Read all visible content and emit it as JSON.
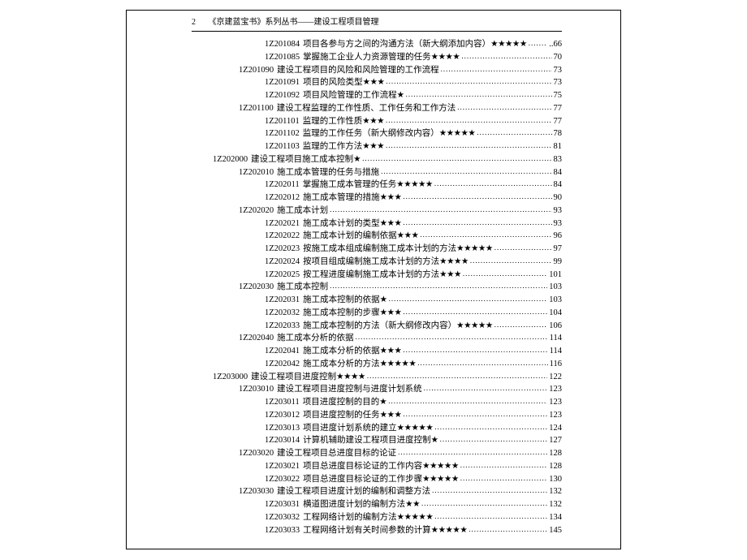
{
  "header": {
    "page_number": "2",
    "book_title": "《京建蓝宝书》系列丛书——建设工程项目管理"
  },
  "toc": [
    {
      "indent": 3,
      "code": "1Z201084",
      "title": "项目各参与方之间的沟通方法（新大纲添加内容）",
      "stars": "★★★★★",
      "page": "..66"
    },
    {
      "indent": 3,
      "code": "1Z201085",
      "title": "掌握施工企业人力资源管理的任务",
      "stars": "★★★★",
      "page": "70"
    },
    {
      "indent": 2,
      "code": "1Z201090",
      "title": "建设工程项目的风险和风险管理的工作流程",
      "stars": "",
      "page": "73"
    },
    {
      "indent": 3,
      "code": "1Z201091",
      "title": "项目的风险类型",
      "stars": "★★★",
      "page": "73"
    },
    {
      "indent": 3,
      "code": "1Z201092",
      "title": "项目风险管理的工作流程",
      "stars": "★",
      "page": "75"
    },
    {
      "indent": 2,
      "code": "1Z201100",
      "title": "建设工程监理的工作性质、工作任务和工作方法",
      "stars": "",
      "page": "77"
    },
    {
      "indent": 3,
      "code": "1Z201101",
      "title": "监理的工作性质",
      "stars": "★★★",
      "page": "77"
    },
    {
      "indent": 3,
      "code": "1Z201102",
      "title": "监理的工作任务（新大纲修改内容）",
      "stars": "★★★★★",
      "page": "78"
    },
    {
      "indent": 3,
      "code": "1Z201103",
      "title": "监理的工作方法",
      "stars": "★★★",
      "page": "81"
    },
    {
      "indent": 1,
      "code": "1Z202000",
      "title": "建设工程项目施工成本控制",
      "stars": "★",
      "page": "83"
    },
    {
      "indent": 2,
      "code": "1Z202010",
      "title": "施工成本管理的任务与措施",
      "stars": "",
      "page": "84"
    },
    {
      "indent": 3,
      "code": "1Z202011",
      "title": "掌握施工成本管理的任务",
      "stars": "★★★★★",
      "page": "84"
    },
    {
      "indent": 3,
      "code": "1Z202012",
      "title": "施工成本管理的措施",
      "stars": "★★★",
      "page": "90"
    },
    {
      "indent": 2,
      "code": "1Z202020",
      "title": "施工成本计划",
      "stars": "",
      "page": "93"
    },
    {
      "indent": 3,
      "code": "1Z202021",
      "title": "施工成本计划的类型",
      "stars": "★★★",
      "page": "93"
    },
    {
      "indent": 3,
      "code": "1Z202022",
      "title": "施工成本计划的编制依据",
      "stars": "★★★",
      "page": "96"
    },
    {
      "indent": 3,
      "code": "1Z202023",
      "title": "按施工成本组成编制施工成本计划的方法",
      "stars": "★★★★★",
      "page": "97"
    },
    {
      "indent": 3,
      "code": "1Z202024",
      "title": "按项目组成编制施工成本计划的方法",
      "stars": "★★★★",
      "page": "99"
    },
    {
      "indent": 3,
      "code": "1Z202025",
      "title": "按工程进度编制施工成本计划的方法",
      "stars": "★★★",
      "page": "101"
    },
    {
      "indent": 2,
      "code": "1Z202030",
      "title": "施工成本控制",
      "stars": "",
      "page": "103"
    },
    {
      "indent": 3,
      "code": "1Z202031",
      "title": "施工成本控制的依据",
      "stars": "★",
      "page": "103"
    },
    {
      "indent": 3,
      "code": "1Z202032",
      "title": "施工成本控制的步骤",
      "stars": "★★★",
      "page": "104"
    },
    {
      "indent": 3,
      "code": "1Z202033",
      "title": "施工成本控制的方法（新大纲修改内容）",
      "stars": "★★★★★",
      "page": "106"
    },
    {
      "indent": 2,
      "code": "1Z202040",
      "title": "施工成本分析的依据",
      "stars": "",
      "page": "114"
    },
    {
      "indent": 3,
      "code": "1Z202041",
      "title": "施工成本分析的依据",
      "stars": "★★★",
      "page": "114"
    },
    {
      "indent": 3,
      "code": "1Z202042",
      "title": "施工成本分析的方法",
      "stars": "★★★★★",
      "page": "116"
    },
    {
      "indent": 1,
      "code": "1Z203000",
      "title": "建设工程项目进度控制",
      "stars": "★★★★",
      "page": "122"
    },
    {
      "indent": 2,
      "code": "1Z203010",
      "title": "建设工程项目进度控制与进度计划系统",
      "stars": "",
      "page": "123"
    },
    {
      "indent": 3,
      "code": "1Z203011",
      "title": "项目进度控制的目的",
      "stars": "★",
      "page": "123"
    },
    {
      "indent": 3,
      "code": "1Z203012",
      "title": "项目进度控制的任务",
      "stars": "★★★",
      "page": "123"
    },
    {
      "indent": 3,
      "code": "1Z203013",
      "title": "项目进度计划系统的建立",
      "stars": "★★★★★",
      "page": "124"
    },
    {
      "indent": 3,
      "code": "1Z203014",
      "title": "计算机辅助建设工程项目进度控制",
      "stars": "★",
      "page": "127"
    },
    {
      "indent": 2,
      "code": "1Z203020",
      "title": "建设工程项目总进度目标的论证",
      "stars": "",
      "page": "128"
    },
    {
      "indent": 3,
      "code": "1Z203021",
      "title": "项目总进度目标论证的工作内容",
      "stars": "★★★★★",
      "page": "128"
    },
    {
      "indent": 3,
      "code": "1Z203022",
      "title": "项目总进度目标论证的工作步骤",
      "stars": "★★★★★",
      "page": "130"
    },
    {
      "indent": 2,
      "code": "1Z203030",
      "title": "建设工程项目进度计划的编制和调整方法",
      "stars": "",
      "page": "132"
    },
    {
      "indent": 3,
      "code": "1Z203031",
      "title": "横道图进度计划的编制方法",
      "stars": "★★",
      "page": "132"
    },
    {
      "indent": 3,
      "code": "1Z203032",
      "title": "工程网络计划的编制方法",
      "stars": "★★★★★",
      "page": "134"
    },
    {
      "indent": 3,
      "code": "1Z203033",
      "title": "工程网络计划有关时间参数的计算",
      "stars": "★★★★★",
      "page": "145"
    }
  ]
}
